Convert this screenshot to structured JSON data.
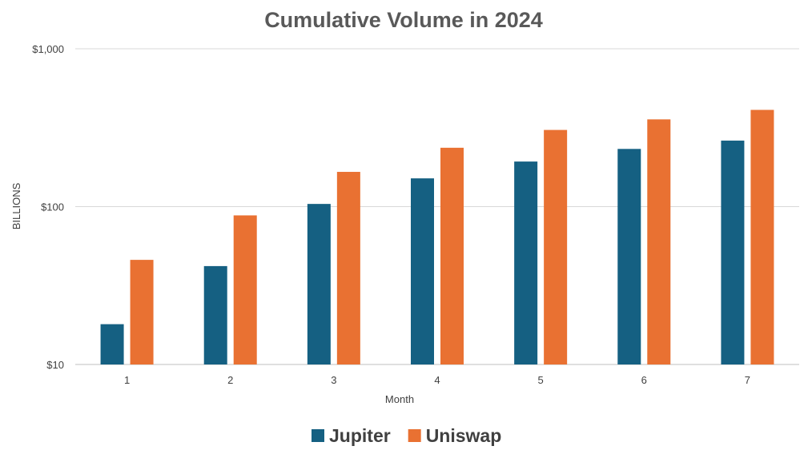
{
  "chart_data": {
    "type": "bar",
    "title": "Cumulative Volume in 2024",
    "xlabel": "Month",
    "ylabel": "BILLIONS",
    "yscale": "log",
    "ylim": [
      10,
      1000
    ],
    "yticks": [
      10,
      100,
      1000
    ],
    "ytick_labels": [
      "$10",
      "$100",
      "$1,000"
    ],
    "categories": [
      "1",
      "2",
      "3",
      "4",
      "5",
      "6",
      "7"
    ],
    "series": [
      {
        "name": "Jupiter",
        "color": "#156082",
        "values": [
          18,
          42,
          104,
          151,
          193,
          232,
          262
        ]
      },
      {
        "name": "Uniswap",
        "color": "#E97132",
        "values": [
          46,
          88,
          166,
          236,
          306,
          357,
          410
        ]
      }
    ],
    "grid": true,
    "legend_position": "bottom"
  }
}
